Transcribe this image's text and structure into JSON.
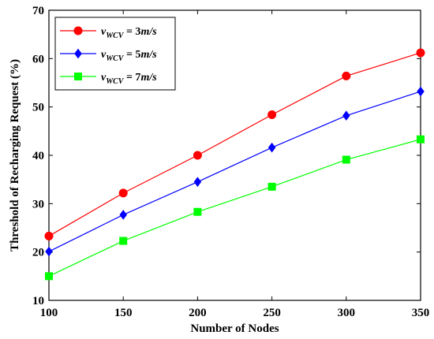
{
  "chart_data": {
    "type": "line",
    "xlabel": "Number of Nodes",
    "ylabel": "Threshold of Recharging Request (%)",
    "x": [
      100,
      150,
      200,
      250,
      300,
      350
    ],
    "xlim": [
      100,
      350
    ],
    "ylim": [
      10,
      70
    ],
    "xticks": [
      "100",
      "150",
      "200",
      "250",
      "300",
      "350"
    ],
    "yticks": [
      "10",
      "20",
      "30",
      "40",
      "50",
      "60",
      "70"
    ],
    "grid": false,
    "legend_position": "top-left",
    "series": [
      {
        "name": "v_WCV = 3m/s",
        "legend": {
          "var": "v",
          "sub": "WCV",
          "eq": " = 3",
          "unit": "m/s"
        },
        "marker": "circle",
        "color": "#ff0000",
        "values": [
          23.3,
          32.2,
          40.0,
          48.4,
          56.4,
          61.2
        ]
      },
      {
        "name": "v_WCV = 5m/s",
        "legend": {
          "var": "v",
          "sub": "WCV",
          "eq": " = 5",
          "unit": "m/s"
        },
        "marker": "diamond",
        "color": "#0000ff",
        "values": [
          20.1,
          27.7,
          34.5,
          41.6,
          48.2,
          53.2
        ]
      },
      {
        "name": "v_WCV = 7m/s",
        "legend": {
          "var": "v",
          "sub": "WCV",
          "eq": " = 7",
          "unit": "m/s"
        },
        "marker": "square",
        "color": "#00ff00",
        "values": [
          15.0,
          22.3,
          28.3,
          33.5,
          39.1,
          43.3
        ]
      }
    ]
  }
}
